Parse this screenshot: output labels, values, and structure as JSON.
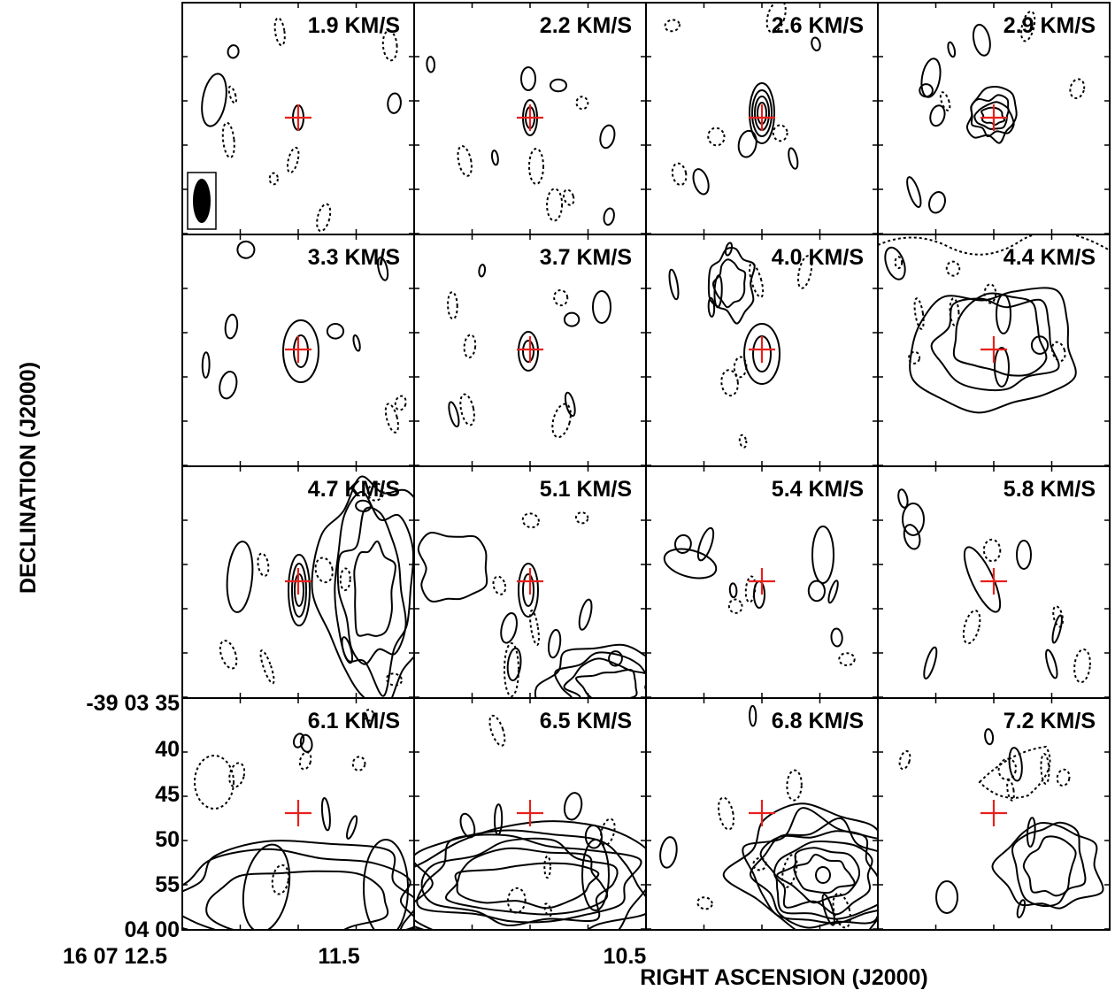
{
  "chart_data": {
    "type": "contour",
    "colors": {
      "marker": "#e8201c",
      "contour": "#000000",
      "beam": "#000000"
    },
    "xlabel": "RIGHT ASCENSION (J2000)",
    "ylabel": "DECLINATION (J2000)",
    "x_tick_labels": [
      "16 07 12.5",
      "11.5",
      "10.5"
    ],
    "y_tick_labels": [
      "-39 03 35",
      "40",
      "45",
      "50",
      "55",
      "04 00"
    ],
    "panels": [
      {
        "label": "1.9 KM/S",
        "beam": true
      },
      {
        "label": "2.2 KM/S"
      },
      {
        "label": "2.6 KM/S"
      },
      {
        "label": "2.9 KM/S"
      },
      {
        "label": "3.3 KM/S"
      },
      {
        "label": "3.7 KM/S"
      },
      {
        "label": "4.0 KM/S"
      },
      {
        "label": "4.4 KM/S"
      },
      {
        "label": "4.7 KM/S"
      },
      {
        "label": "5.1 KM/S"
      },
      {
        "label": "5.4 KM/S"
      },
      {
        "label": "5.8 KM/S"
      },
      {
        "label": "6.1 KM/S"
      },
      {
        "label": "6.5 KM/S"
      },
      {
        "label": "6.8 KM/S"
      },
      {
        "label": "7.2 KM/S"
      }
    ]
  }
}
